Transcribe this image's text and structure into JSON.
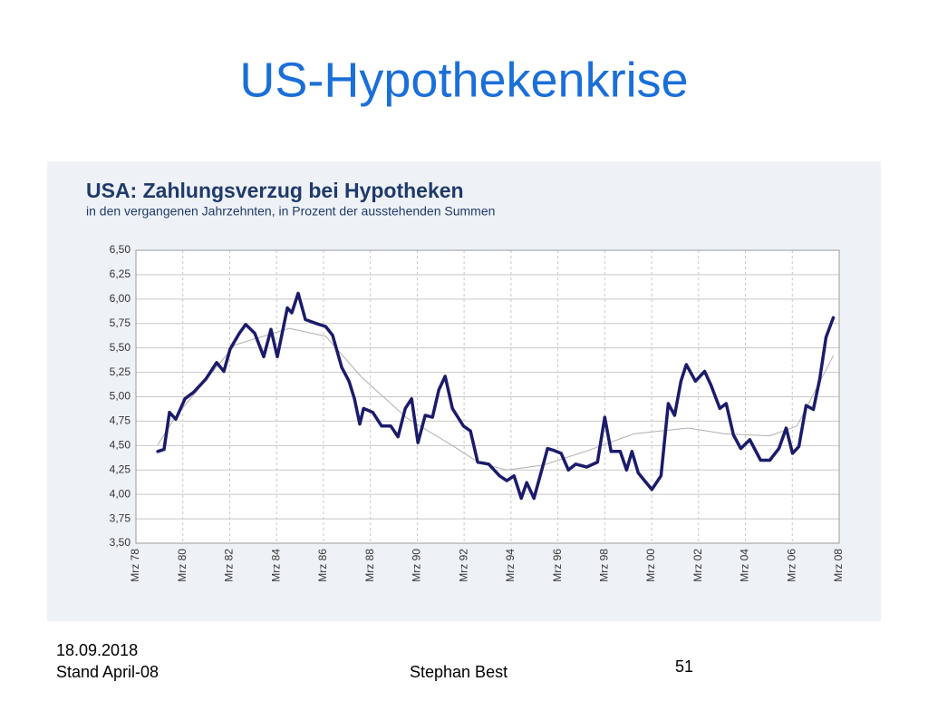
{
  "slide_title": "US-Hypothekenkrise",
  "footer": {
    "date": "18.09.2018",
    "status": "Stand April-08",
    "author": "Stephan Best",
    "page": "51"
  },
  "chart_data": {
    "type": "line",
    "title": "USA: Zahlungsverzug bei Hypotheken",
    "subtitle": "in den vergangenen Jahrzehnten, in Prozent der ausstehenden Summen",
    "xlim": [
      1978.17,
      2008.17
    ],
    "xticks": [
      {
        "value": 1978.17,
        "label": "Mrz 78"
      },
      {
        "value": 1980.17,
        "label": "Mrz 80"
      },
      {
        "value": 1982.17,
        "label": "Mrz 82"
      },
      {
        "value": 1984.17,
        "label": "Mrz 84"
      },
      {
        "value": 1986.17,
        "label": "Mrz 86"
      },
      {
        "value": 1988.17,
        "label": "Mrz 88"
      },
      {
        "value": 1990.17,
        "label": "Mrz 90"
      },
      {
        "value": 1992.17,
        "label": "Mrz 92"
      },
      {
        "value": 1994.17,
        "label": "Mrz 94"
      },
      {
        "value": 1996.17,
        "label": "Mrz 96"
      },
      {
        "value": 1998.17,
        "label": "Mrz 98"
      },
      {
        "value": 2000.17,
        "label": "Mrz 00"
      },
      {
        "value": 2002.17,
        "label": "Mrz 02"
      },
      {
        "value": 2004.17,
        "label": "Mrz 04"
      },
      {
        "value": 2006.17,
        "label": "Mrz 06"
      },
      {
        "value": 2008.17,
        "label": "Mrz 08"
      }
    ],
    "ylim": [
      3.5,
      6.5
    ],
    "yticks": [
      {
        "value": 3.5,
        "label": "3,50"
      },
      {
        "value": 3.75,
        "label": "3,75"
      },
      {
        "value": 4.0,
        "label": "4,00"
      },
      {
        "value": 4.25,
        "label": "4,25"
      },
      {
        "value": 4.5,
        "label": "4,50"
      },
      {
        "value": 4.75,
        "label": "4,75"
      },
      {
        "value": 5.0,
        "label": "5,00"
      },
      {
        "value": 5.25,
        "label": "5,25"
      },
      {
        "value": 5.5,
        "label": "5,50"
      },
      {
        "value": 5.75,
        "label": "5,75"
      },
      {
        "value": 6.0,
        "label": "6,00"
      },
      {
        "value": 6.25,
        "label": "6,25"
      },
      {
        "value": 6.5,
        "label": "6,50"
      }
    ],
    "grid": true,
    "series": [
      {
        "color": "#1b1b6b",
        "width": 3.5,
        "x": [
          1979.1,
          1979.37,
          1979.6,
          1979.87,
          1980.26,
          1980.65,
          1981.15,
          1981.61,
          1981.92,
          1982.19,
          1982.58,
          1982.85,
          1983.24,
          1983.62,
          1983.93,
          1984.2,
          1984.63,
          1984.82,
          1985.09,
          1985.4,
          1985.87,
          1986.26,
          1986.56,
          1986.95,
          1987.26,
          1987.49,
          1987.72,
          1987.88,
          1988.27,
          1988.65,
          1989.04,
          1989.35,
          1989.66,
          1989.93,
          1990.2,
          1990.51,
          1990.82,
          1991.09,
          1991.36,
          1991.67,
          1992.14,
          1992.44,
          1992.75,
          1993.22,
          1993.68,
          1993.99,
          1994.3,
          1994.61,
          1994.84,
          1995.15,
          1995.46,
          1995.73,
          1996.0,
          1996.31,
          1996.62,
          1996.93,
          1997.4,
          1997.86,
          1998.17,
          1998.44,
          1998.83,
          1999.1,
          1999.33,
          1999.6,
          1999.87,
          2000.18,
          2000.57,
          2000.88,
          2001.15,
          2001.42,
          2001.65,
          2002.04,
          2002.43,
          2002.7,
          2003.08,
          2003.35,
          2003.66,
          2003.97,
          2004.36,
          2004.82,
          2005.21,
          2005.6,
          2005.91,
          2006.18,
          2006.45,
          2006.76,
          2007.07,
          2007.34,
          2007.61,
          2007.92
        ],
        "values": [
          4.44,
          4.46,
          4.84,
          4.77,
          4.98,
          5.05,
          5.18,
          5.35,
          5.26,
          5.49,
          5.65,
          5.74,
          5.65,
          5.41,
          5.69,
          5.41,
          5.91,
          5.86,
          6.06,
          5.79,
          5.75,
          5.72,
          5.63,
          5.3,
          5.16,
          4.98,
          4.72,
          4.88,
          4.84,
          4.7,
          4.7,
          4.59,
          4.88,
          4.98,
          4.53,
          4.81,
          4.79,
          5.07,
          5.21,
          4.88,
          4.7,
          4.65,
          4.33,
          4.31,
          4.19,
          4.14,
          4.19,
          3.96,
          4.12,
          3.96,
          4.23,
          4.47,
          4.45,
          4.42,
          4.25,
          4.31,
          4.28,
          4.33,
          4.79,
          4.44,
          4.44,
          4.25,
          4.44,
          4.22,
          4.14,
          4.05,
          4.19,
          4.93,
          4.81,
          5.16,
          5.33,
          5.16,
          5.26,
          5.12,
          4.88,
          4.93,
          4.61,
          4.47,
          4.56,
          4.35,
          4.35,
          4.47,
          4.68,
          4.42,
          4.49,
          4.91,
          4.87,
          5.18,
          5.61,
          5.81
        ]
      },
      {
        "color": "#b0b0b0",
        "width": 1,
        "x": [
          1979.1,
          1979.87,
          1982.39,
          1984.71,
          1986.26,
          1987.8,
          1989.74,
          1991.67,
          1992.83,
          1994.0,
          1995.54,
          1997.47,
          1999.41,
          2001.73,
          2003.28,
          2005.21,
          2006.37,
          2007.92
        ],
        "values": [
          4.51,
          4.8,
          5.53,
          5.7,
          5.62,
          5.2,
          4.78,
          4.5,
          4.32,
          4.25,
          4.3,
          4.45,
          4.62,
          4.68,
          4.62,
          4.6,
          4.7,
          5.42
        ]
      }
    ]
  }
}
